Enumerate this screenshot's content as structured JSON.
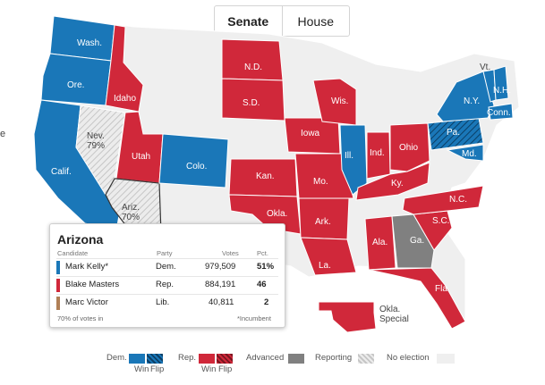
{
  "tabs": [
    {
      "label": "Senate",
      "active": true
    },
    {
      "label": "House",
      "active": false
    }
  ],
  "colors": {
    "dem": "#1a77b8",
    "rep": "#d0283a",
    "advanced": "#808080",
    "no_election": "#efefef",
    "reporting": "#dadada"
  },
  "states": {
    "wash": "Wash.",
    "ore": "Ore.",
    "idaho": "Idaho",
    "calif": "Calif.",
    "nev": "Nev.",
    "nev_pct": "79%",
    "utah": "Utah",
    "ariz": "Ariz.",
    "ariz_pct": "70%",
    "colo": "Colo.",
    "nd": "N.D.",
    "sd": "S.D.",
    "kan": "Kan.",
    "okla": "Okla.",
    "iowa": "Iowa",
    "mo": "Mo.",
    "ark": "Ark.",
    "la": "La.",
    "wis": "Wis.",
    "ill": "Ill.",
    "ind": "Ind.",
    "ohio": "Ohio",
    "ky": "Ky.",
    "ala": "Ala.",
    "ga": "Ga.",
    "nc": "N.C.",
    "sc": "S.C.",
    "fla": "Fla.",
    "pa": "Pa.",
    "md": "Md.",
    "ny": "N.Y.",
    "vt": "Vt.",
    "nh": "N.H.",
    "conn": "Conn.",
    "okla_special_1": "Okla.",
    "okla_special_2": "Special"
  },
  "side_letter": "e",
  "popup": {
    "title": "Arizona",
    "headers": {
      "candidate": "Candidate",
      "party": "Party",
      "votes": "Votes",
      "pct": "Pct."
    },
    "rows": [
      {
        "name": "Mark Kelly*",
        "party": "Dem.",
        "votes": "979,509",
        "pct": "51%",
        "color": "#1a77b8"
      },
      {
        "name": "Blake Masters",
        "party": "Rep.",
        "votes": "884,191",
        "pct": "46",
        "color": "#d0283a"
      },
      {
        "name": "Marc Victor",
        "party": "Lib.",
        "votes": "40,811",
        "pct": "2",
        "color": "#b07f56"
      }
    ],
    "votes_in": "70% of votes in",
    "incumbent_note": "*Incumbent"
  },
  "legend": {
    "dem": "Dem.",
    "rep": "Rep.",
    "win": "Win",
    "flip": "Flip",
    "advanced": "Advanced",
    "reporting": "Reporting",
    "no_election": "No election"
  }
}
